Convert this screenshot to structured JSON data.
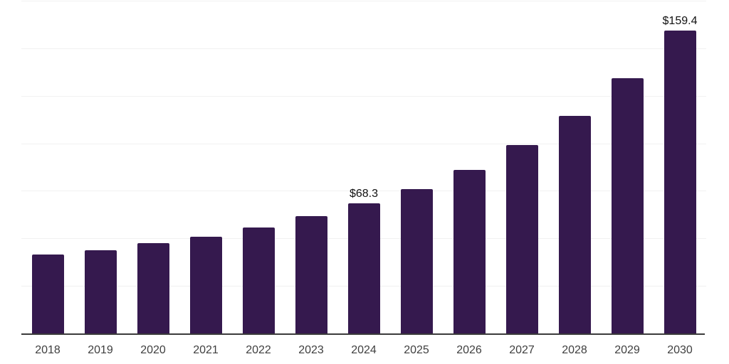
{
  "chart_data": {
    "type": "bar",
    "title": "",
    "xlabel": "",
    "ylabel": "",
    "categories": [
      "2018",
      "2019",
      "2020",
      "2021",
      "2022",
      "2023",
      "2024",
      "2025",
      "2026",
      "2027",
      "2028",
      "2029",
      "2030"
    ],
    "values": [
      41.5,
      43.8,
      47.5,
      50.9,
      55.8,
      61.7,
      68.3,
      76.0,
      86.1,
      99.2,
      114.5,
      134.3,
      159.4
    ],
    "labels": {
      "2024": "$68.3",
      "2030": "$159.4"
    },
    "ylim": [
      0,
      175
    ],
    "gridline_values": [
      25,
      50,
      75,
      100,
      125,
      150,
      175
    ],
    "grid": true,
    "legend": "none",
    "bar_color": "#35194e",
    "grid_color": "#f1f1f1",
    "axis_color": "#3b3b3b",
    "data_label_color": "#111111",
    "tick_label_color": "#3f3f3f",
    "background_color": "#ffffff"
  }
}
